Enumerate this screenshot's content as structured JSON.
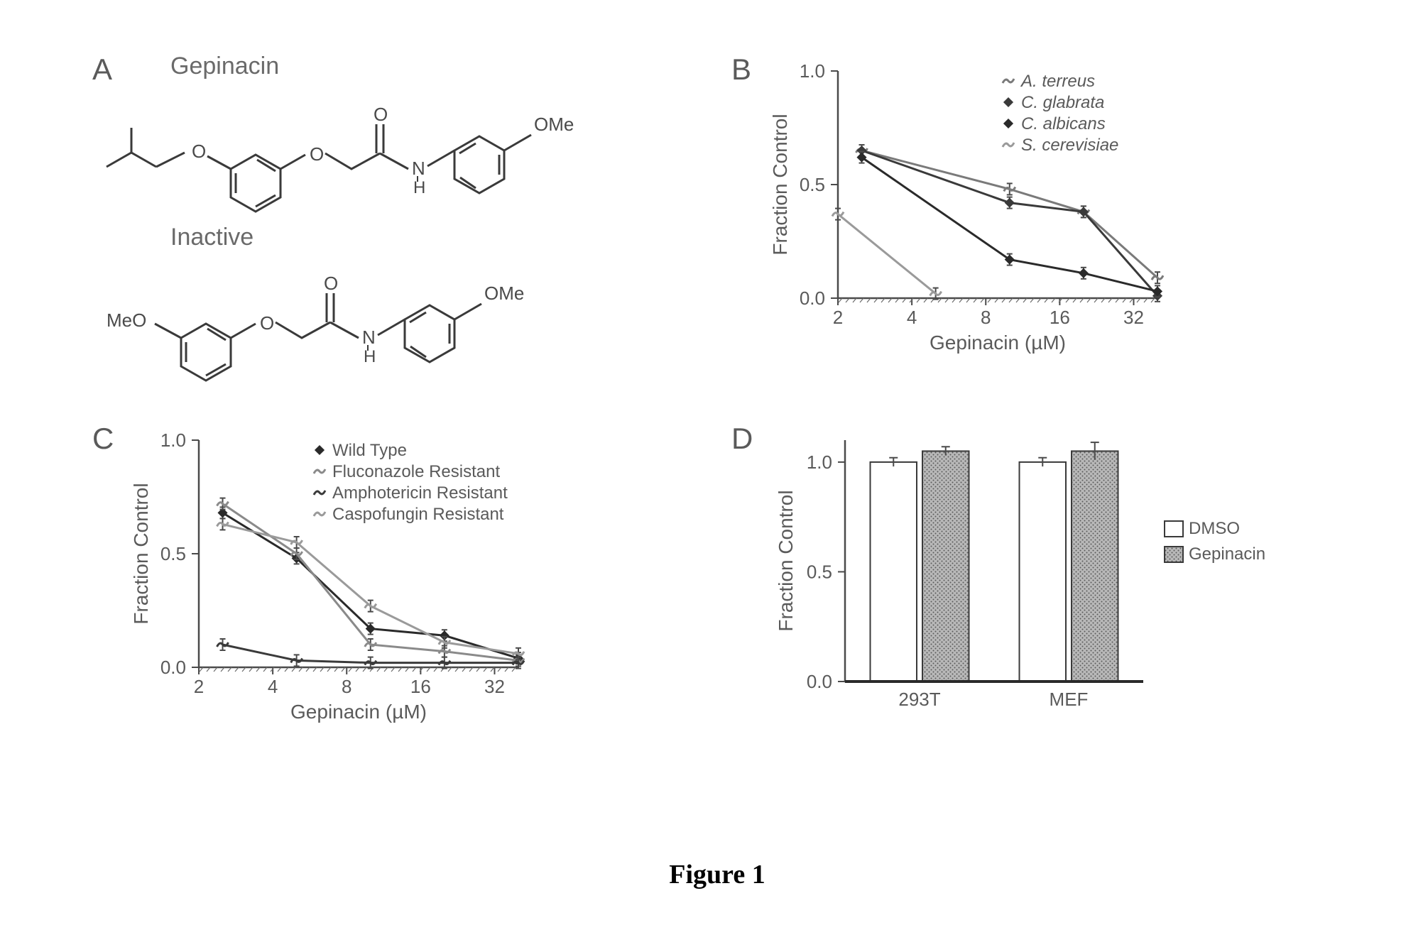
{
  "figure_caption": "Figure 1",
  "panelA": {
    "label": "A",
    "title_active": "Gepinacin",
    "title_inactive": "Inactive",
    "atom_labels": {
      "o": "O",
      "n": "N",
      "h": "H",
      "ome": "OMe",
      "meo": "MeO"
    }
  },
  "panelB": {
    "label": "B",
    "type": "line",
    "xlabel": "Gepinacin (µM)",
    "ylabel": "Fraction Control",
    "xscale": "log2",
    "xticks": [
      2,
      4,
      8,
      16,
      32
    ],
    "yticks": [
      0.0,
      0.5,
      1.0
    ],
    "ylim": [
      0.0,
      1.0
    ],
    "xlim": [
      2,
      40
    ],
    "background_color": "#ffffff",
    "axis_color": "#4a4a4a",
    "tick_fontsize": 26,
    "label_fontsize": 28,
    "legend_fontsize": 24,
    "legend_position": "upper-right-inside",
    "series": [
      {
        "name": "A. terreus",
        "italic": true,
        "color": "#7a7a7a",
        "marker": "tilde",
        "x": [
          2.5,
          10,
          20,
          40
        ],
        "y": [
          0.65,
          0.48,
          0.38,
          0.09
        ]
      },
      {
        "name": "C. glabrata",
        "italic": true,
        "color": "#3a3a3a",
        "marker": "diamond",
        "x": [
          2.5,
          10,
          20,
          40
        ],
        "y": [
          0.65,
          0.42,
          0.38,
          0.01
        ]
      },
      {
        "name": "C. albicans",
        "italic": true,
        "color": "#2a2a2a",
        "marker": "diamond",
        "x": [
          2.5,
          10,
          20,
          40
        ],
        "y": [
          0.62,
          0.17,
          0.11,
          0.03
        ]
      },
      {
        "name": "S. cerevisiae",
        "italic": true,
        "color": "#9a9a9a",
        "marker": "tilde",
        "x": [
          2,
          5
        ],
        "y": [
          0.37,
          0.02
        ]
      }
    ]
  },
  "panelC": {
    "label": "C",
    "type": "line",
    "xlabel": "Gepinacin (µM)",
    "ylabel": "Fraction Control",
    "xscale": "log2",
    "xticks": [
      2,
      4,
      8,
      16,
      32
    ],
    "yticks": [
      0.0,
      0.5,
      1.0
    ],
    "ylim": [
      0.0,
      1.0
    ],
    "xlim": [
      2,
      40
    ],
    "background_color": "#ffffff",
    "axis_color": "#4a4a4a",
    "tick_fontsize": 26,
    "label_fontsize": 28,
    "legend_fontsize": 24,
    "legend_position": "upper-right-inside",
    "series": [
      {
        "name": "Wild Type",
        "italic": false,
        "color": "#2a2a2a",
        "marker": "diamond",
        "x": [
          2.5,
          5,
          10,
          20,
          40
        ],
        "y": [
          0.68,
          0.48,
          0.17,
          0.14,
          0.04
        ]
      },
      {
        "name": "Fluconazole Resistant",
        "italic": false,
        "color": "#8a8a8a",
        "marker": "tilde",
        "x": [
          2.5,
          5,
          10,
          20,
          40
        ],
        "y": [
          0.72,
          0.5,
          0.1,
          0.07,
          0.03
        ]
      },
      {
        "name": "Amphotericin Resistant",
        "italic": false,
        "color": "#3a3a3a",
        "marker": "tilde",
        "x": [
          2.5,
          5,
          10,
          20,
          40
        ],
        "y": [
          0.1,
          0.03,
          0.02,
          0.02,
          0.02
        ]
      },
      {
        "name": "Caspofungin Resistant",
        "italic": false,
        "color": "#9a9a9a",
        "marker": "tilde",
        "x": [
          2.5,
          5,
          10,
          20,
          40
        ],
        "y": [
          0.63,
          0.55,
          0.27,
          0.11,
          0.06
        ]
      }
    ]
  },
  "panelD": {
    "label": "D",
    "type": "bar",
    "ylabel": "Fraction Control",
    "yticks": [
      0.0,
      0.5,
      1.0
    ],
    "ylim": [
      0.0,
      1.1
    ],
    "categories": [
      "293T",
      "MEF"
    ],
    "groups": [
      {
        "name": "DMSO",
        "fill": "#ffffff",
        "stroke": "#3a3a3a",
        "pattern": "none"
      },
      {
        "name": "Gepinacin",
        "fill": "#a0a0a0",
        "stroke": "#3a3a3a",
        "pattern": "dots"
      }
    ],
    "values": [
      {
        "category": "293T",
        "group": "DMSO",
        "value": 1.0,
        "err": 0.02
      },
      {
        "category": "293T",
        "group": "Gepinacin",
        "value": 1.05,
        "err": 0.02
      },
      {
        "category": "MEF",
        "group": "DMSO",
        "value": 1.0,
        "err": 0.02
      },
      {
        "category": "MEF",
        "group": "Gepinacin",
        "value": 1.05,
        "err": 0.04
      }
    ],
    "bar_width": 0.35,
    "axis_color": "#4a4a4a",
    "tick_fontsize": 26,
    "label_fontsize": 28,
    "legend_fontsize": 26
  }
}
